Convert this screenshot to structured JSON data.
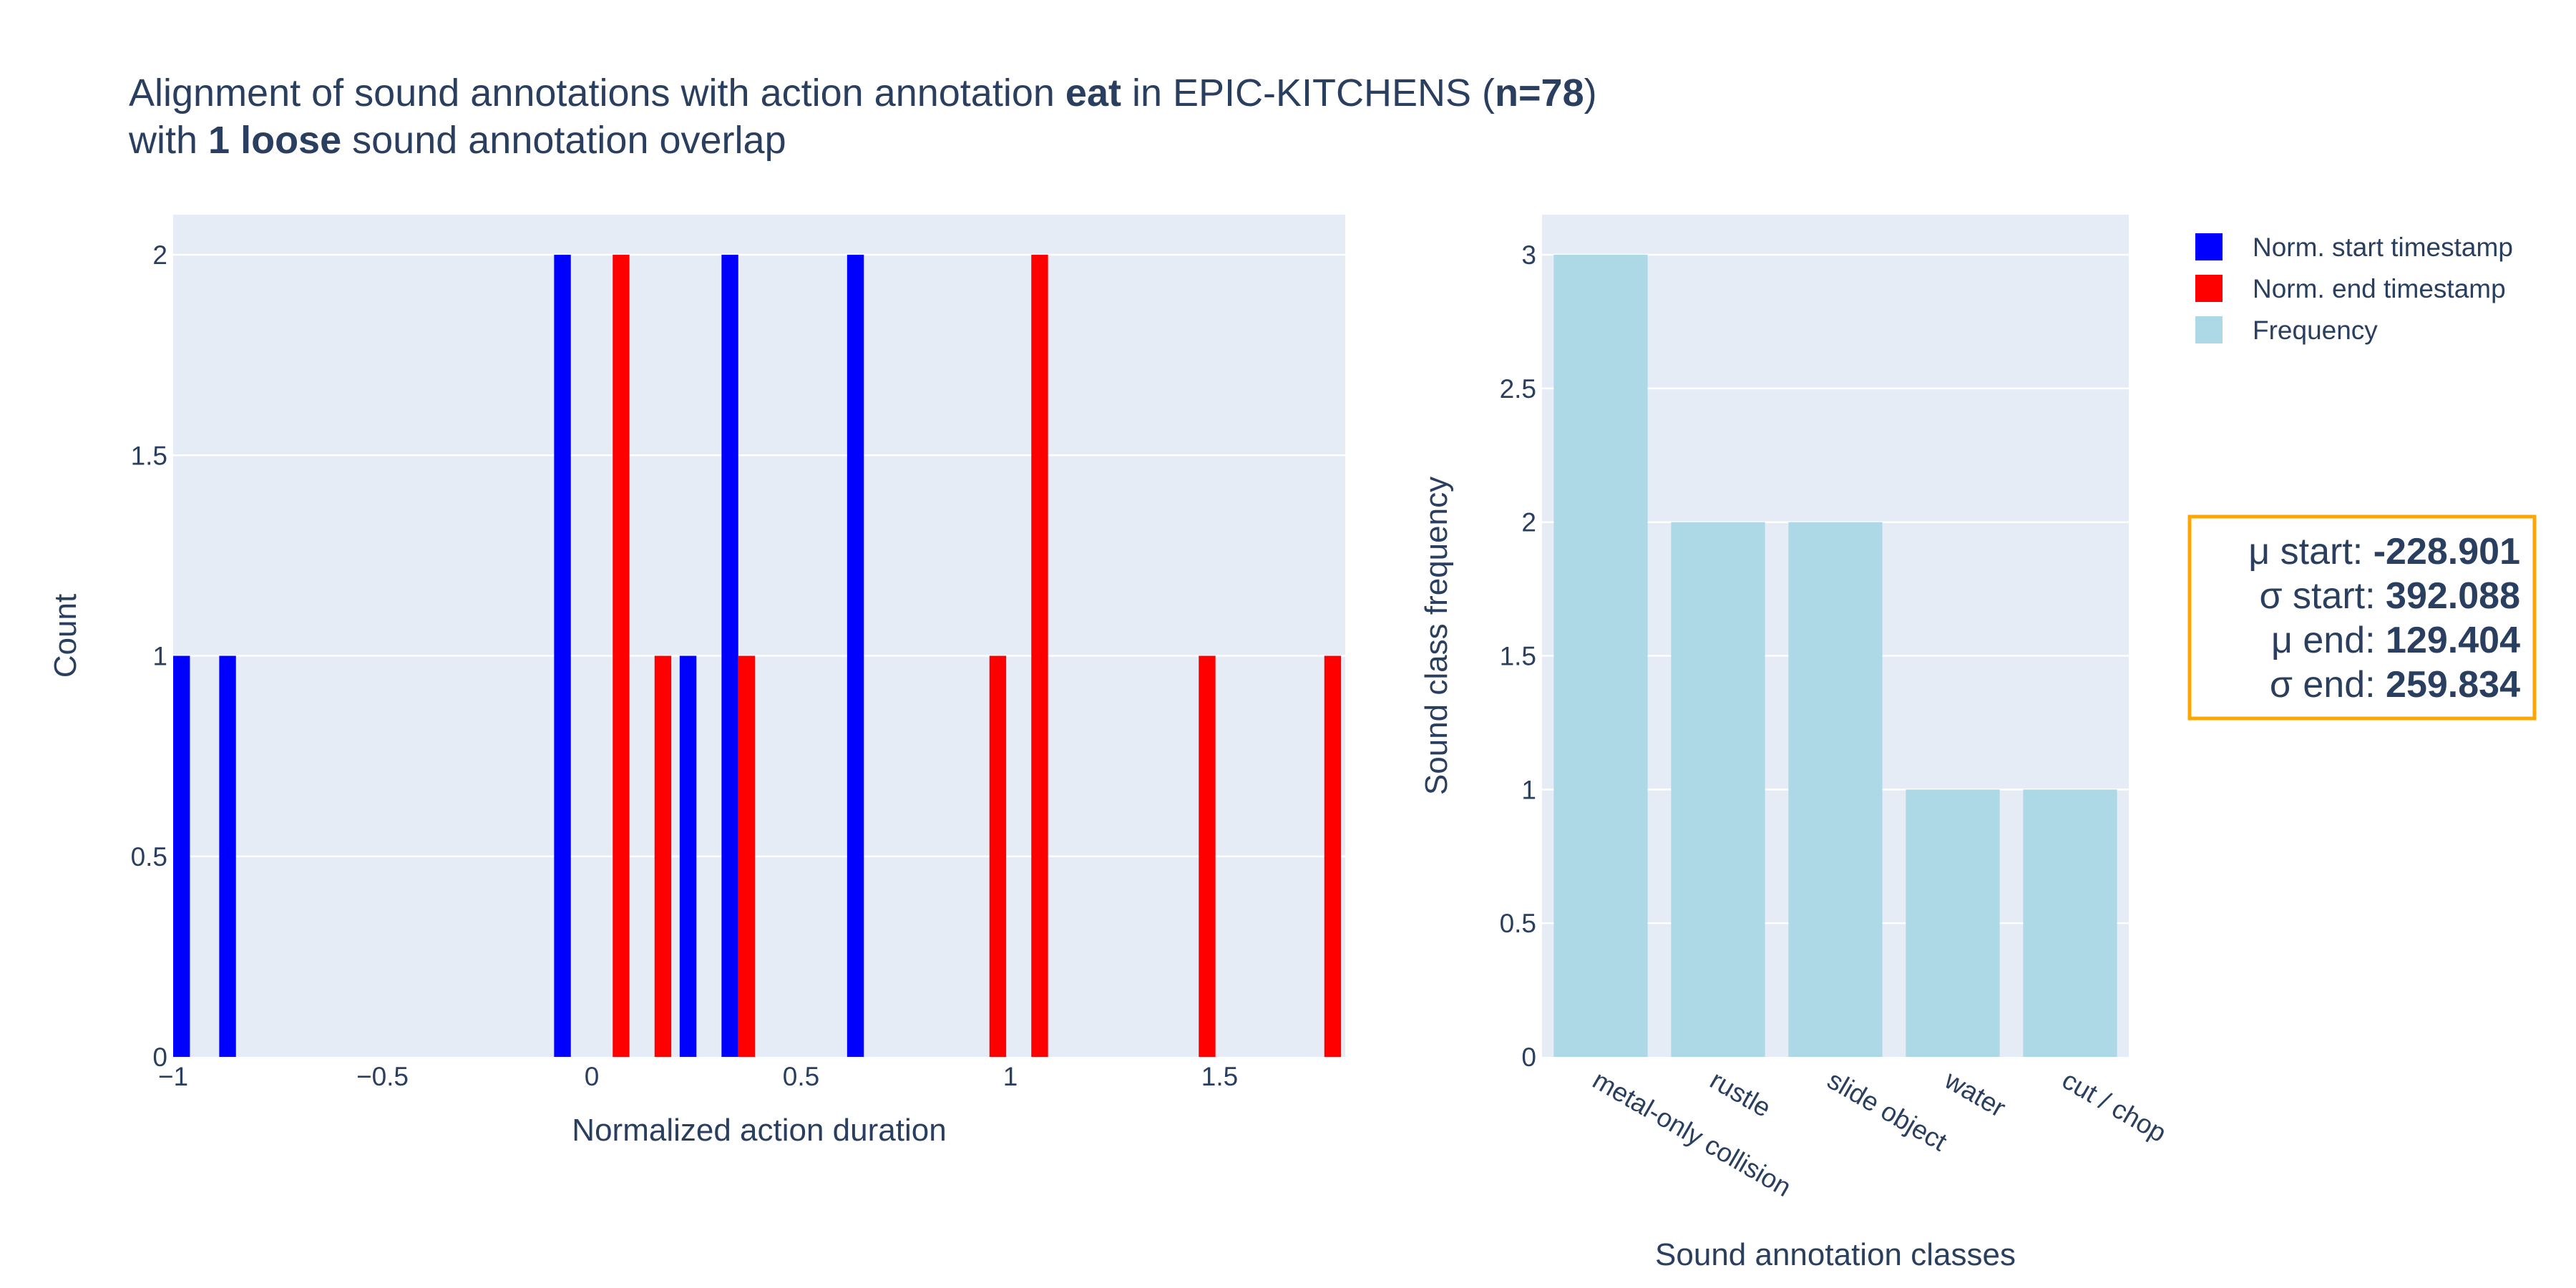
{
  "title": {
    "line1": [
      {
        "text": "Alignment of sound annotations with action annotation ",
        "bold": false
      },
      {
        "text": "eat",
        "bold": true
      },
      {
        "text": " in EPIC-KITCHENS (",
        "bold": false
      },
      {
        "text": "n=78",
        "bold": true
      },
      {
        "text": ")",
        "bold": false
      }
    ],
    "line2": [
      {
        "text": "with ",
        "bold": false
      },
      {
        "text": "1 loose",
        "bold": true
      },
      {
        "text": " sound annotation overlap",
        "bold": false
      }
    ]
  },
  "colors": {
    "start": "#0000ff",
    "end": "#ff0000",
    "frequency": "#add8e6",
    "plot_bg": "#e5ecf6",
    "grid": "#ffffff",
    "text": "#2a3f5f",
    "stats_border": "#ffa500"
  },
  "legend": {
    "items": [
      {
        "label": "Norm. start timestamp",
        "color": "#0000ff"
      },
      {
        "label": "Norm. end timestamp",
        "color": "#ff0000"
      },
      {
        "label": "Frequency",
        "color": "#add8e6"
      }
    ]
  },
  "stats": {
    "lines": [
      {
        "label": "μ start: ",
        "value": "-228.901"
      },
      {
        "label": "σ start: ",
        "value": "392.088"
      },
      {
        "label": "μ end: ",
        "value": "129.404"
      },
      {
        "label": "σ end: ",
        "value": "259.834"
      }
    ]
  },
  "chart_data": [
    {
      "type": "bar",
      "xlabel": "Normalized action duration",
      "ylabel": "Count",
      "xlim": [
        -1,
        1.8
      ],
      "ylim": [
        0,
        2.1
      ],
      "xticks": [
        -1,
        -0.5,
        0,
        0.5,
        1,
        1.5
      ],
      "xtick_labels": [
        "−1",
        "−0.5",
        "0",
        "0.5",
        "1",
        "1.5"
      ],
      "yticks": [
        0,
        0.5,
        1,
        1.5,
        2
      ],
      "ytick_labels": [
        "0",
        "0.5",
        "1",
        "1.5",
        "2"
      ],
      "grid": true,
      "bin_width": 0.04,
      "series": [
        {
          "name": "Norm. start timestamp",
          "bins": [
            {
              "x": -0.98,
              "count": 1
            },
            {
              "x": -0.87,
              "count": 1
            },
            {
              "x": -0.07,
              "count": 2
            },
            {
              "x": 0.23,
              "count": 1
            },
            {
              "x": 0.33,
              "count": 2
            },
            {
              "x": 0.63,
              "count": 2
            }
          ]
        },
        {
          "name": "Norm. end timestamp",
          "bins": [
            {
              "x": 0.07,
              "count": 2
            },
            {
              "x": 0.17,
              "count": 1
            },
            {
              "x": 0.37,
              "count": 1
            },
            {
              "x": 0.97,
              "count": 1
            },
            {
              "x": 1.07,
              "count": 2
            },
            {
              "x": 1.47,
              "count": 1
            },
            {
              "x": 1.77,
              "count": 1
            }
          ]
        }
      ]
    },
    {
      "type": "bar",
      "xlabel": "Sound annotation classes",
      "ylabel": "Sound class frequency",
      "categories": [
        "metal-only collision",
        "rustle",
        "slide object",
        "water",
        "cut / chop"
      ],
      "series": [
        {
          "name": "Frequency",
          "values": [
            3,
            2,
            2,
            1,
            1
          ]
        }
      ],
      "ylim": [
        0,
        3.15
      ],
      "yticks": [
        0,
        0.5,
        1,
        1.5,
        2,
        2.5,
        3
      ],
      "ytick_labels": [
        "0",
        "0.5",
        "1",
        "1.5",
        "2",
        "2.5",
        "3"
      ],
      "grid": true
    }
  ]
}
